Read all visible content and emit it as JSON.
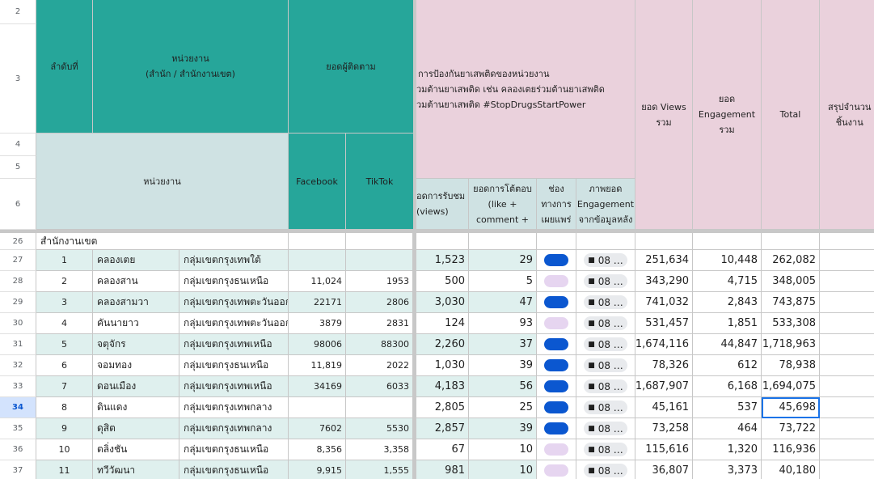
{
  "row_numbers": [
    "2",
    "3",
    "4",
    "5",
    "6",
    "26",
    "27",
    "28",
    "29",
    "30",
    "31",
    "32",
    "33",
    "34",
    "35",
    "36",
    "37"
  ],
  "selected_row": "34",
  "headers": {
    "rank": "ลำดับที่",
    "unit_line1": "หน่วยงาน",
    "unit_line2": "(สำนัก / สำนักงานเขต)",
    "followers": "ยอดผู้ติดตาม",
    "unit": "หน่วยงาน",
    "facebook": "Facebook",
    "tiktok": "TikTok",
    "campaign_line1": "การป้องกันยาเสพติดของหน่วยงาน",
    "campaign_line2": "่วมต้านยาเสพติด เช่น คลองเตยร่วมต้านยาเสพติด",
    "campaign_line3": "วมต้านยาเสพติด #StopDrugsStartPower",
    "views_col_line1": "อดการรับชม",
    "views_col_line2": "(views)",
    "reply_line1": "ยอดการโต้ตอบ",
    "reply_line2": "(like +",
    "reply_line3": "comment +",
    "channel_line1": "ช่อง",
    "channel_line2": "ทางการ",
    "channel_line3": "เผยแพร่",
    "image_line1": "ภาพยอด",
    "image_line2": "Engagement",
    "image_line3": "จากข้อมูลหลัง",
    "total_views_line1": "ยอด Views",
    "total_views_line2": "รวม",
    "total_eng_line1": "ยอด",
    "total_eng_line2": "Engagement",
    "total_eng_line3": "รวม",
    "total": "Total",
    "summary_line1": "สรุปจำนวน",
    "summary_line2": "ชิ้นงาน"
  },
  "section_label": "สำนักงานเขต",
  "chip_label": "08 …",
  "colors": {
    "teal": "#26a69a",
    "grey_blue": "#cfe2e3",
    "pink": "#ead1dc",
    "mint": "#dff0ee",
    "pill_dark": "#0b57d0",
    "pill_light": "#e6d5f0",
    "selection": "#1a73e8"
  },
  "rows": [
    {
      "no": "1",
      "district": "คลองเตย",
      "group": "กลุ่มเขตกรุงเทพใต้",
      "fb": "",
      "tt": "",
      "views": "1,523",
      "eng": "29",
      "pill": "dark",
      "tviews": "251,634",
      "teng": "10,448",
      "total": "262,082"
    },
    {
      "no": "2",
      "district": "คลองสาน",
      "group": "กลุ่มเขตกรุงธนเหนือ",
      "fb": "11,024",
      "tt": "1953",
      "views": "500",
      "eng": "5",
      "pill": "light",
      "tviews": "343,290",
      "teng": "4,715",
      "total": "348,005"
    },
    {
      "no": "3",
      "district": "คลองสามวา",
      "group": "กลุ่มเขตกรุงเทพตะวันออก",
      "fb": "22171",
      "tt": "2806",
      "views": "3,030",
      "eng": "47",
      "pill": "dark",
      "tviews": "741,032",
      "teng": "2,843",
      "total": "743,875"
    },
    {
      "no": "4",
      "district": "คันนายาว",
      "group": "กลุ่มเขตกรุงเทพตะวันออก",
      "fb": "3879",
      "tt": "2831",
      "views": "124",
      "eng": "93",
      "pill": "light",
      "tviews": "531,457",
      "teng": "1,851",
      "total": "533,308"
    },
    {
      "no": "5",
      "district": "จตุจักร",
      "group": "กลุ่มเขตกรุงเทพเหนือ",
      "fb": "98006",
      "tt": "88300",
      "views": "2,260",
      "eng": "37",
      "pill": "dark",
      "tviews": "1,674,116",
      "teng": "44,847",
      "total": "1,718,963"
    },
    {
      "no": "6",
      "district": "จอมทอง",
      "group": "กลุ่มเขตกรุงธนเหนือ",
      "fb": "11,819",
      "tt": "2022",
      "views": "1,030",
      "eng": "39",
      "pill": "dark",
      "tviews": "78,326",
      "teng": "612",
      "total": "78,938"
    },
    {
      "no": "7",
      "district": "ดอนเมือง",
      "group": "กลุ่มเขตกรุงเทพเหนือ",
      "fb": "34169",
      "tt": "6033",
      "views": "4,183",
      "eng": "56",
      "pill": "dark",
      "tviews": "1,687,907",
      "teng": "6,168",
      "total": "1,694,075"
    },
    {
      "no": "8",
      "district": "ดินแดง",
      "group": "กลุ่มเขตกรุงเทพกลาง",
      "fb": "",
      "tt": "",
      "views": "2,805",
      "eng": "25",
      "pill": "dark",
      "tviews": "45,161",
      "teng": "537",
      "total": "45,698"
    },
    {
      "no": "9",
      "district": "ดุสิต",
      "group": "กลุ่มเขตกรุงเทพกลาง",
      "fb": "7602",
      "tt": "5530",
      "views": "2,857",
      "eng": "39",
      "pill": "dark",
      "tviews": "73,258",
      "teng": "464",
      "total": "73,722"
    },
    {
      "no": "10",
      "district": "ตลิ่งชัน",
      "group": "กลุ่มเขตกรุงธนเหนือ",
      "fb": "8,356",
      "tt": "3,358",
      "views": "67",
      "eng": "10",
      "pill": "light",
      "tviews": "115,616",
      "teng": "1,320",
      "total": "116,936"
    },
    {
      "no": "11",
      "district": "ทวีวัฒนา",
      "group": "กลุ่มเขตกรุงธนเหนือ",
      "fb": "9,915",
      "tt": "1,555",
      "views": "981",
      "eng": "10",
      "pill": "light",
      "tviews": "36,807",
      "teng": "3,373",
      "total": "40,180"
    }
  ]
}
